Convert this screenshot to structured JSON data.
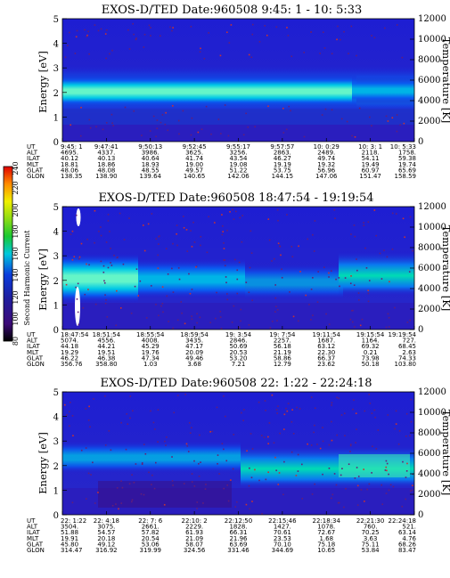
{
  "colorbar": {
    "label": "Second Harmonic Current",
    "ticks": [
      "80",
      "100",
      "120",
      "140",
      "160",
      "180",
      "200",
      "220",
      "240"
    ],
    "colors": [
      "#000000",
      "#2a0033",
      "#3c0a78",
      "#1e1ea0",
      "#0a3cdc",
      "#0a8cf0",
      "#00c8dc",
      "#00dca0",
      "#19c832",
      "#8cdc14",
      "#f0f000",
      "#ffb400",
      "#ff3c00",
      "#e00000"
    ]
  },
  "chart_data": [
    {
      "type": "heatmap",
      "title": "EXOS-D/TED  Date:960508  9:45: 1 - 10: 5:33",
      "ylabel": "Energy [eV]",
      "y2label": "Temperature [K]",
      "ylim": [
        0,
        5
      ],
      "y2lim": [
        0,
        12000
      ],
      "yticks": [
        "0",
        "1",
        "2",
        "3",
        "4",
        "5"
      ],
      "y2ticks": [
        "0",
        "2000",
        "4000",
        "6000",
        "8000",
        "10000",
        "12000"
      ],
      "table": {
        "labels": [
          "UT",
          "ALT",
          "ILAT",
          "MLT",
          "GLAT",
          "GLON"
        ],
        "columns": [
          [
            "9:45: 1",
            "4695.",
            "40.12",
            "18.81",
            "48.06",
            "138.35"
          ],
          [
            "9:47:41",
            "4337.",
            "40.13",
            "18.86",
            "48.08",
            "138.90"
          ],
          [
            "9:50:13",
            "3986.",
            "40.64",
            "18.93",
            "48.55",
            "139.64"
          ],
          [
            "9:52:45",
            "3625.",
            "41.74",
            "19.00",
            "49.57",
            "140.65"
          ],
          [
            "9:55:17",
            "3256.",
            "43.54",
            "19.08",
            "51.22",
            "142.06"
          ],
          [
            "9:57:57",
            "2863.",
            "46.27",
            "19.19",
            "53.75",
            "144.15"
          ],
          [
            "10: 0:29",
            "2489.",
            "49.74",
            "19.32",
            "56.96",
            "147.06"
          ],
          [
            "10: 3: 1",
            "2118.",
            "54.11",
            "19.49",
            "60.97",
            "151.47"
          ],
          [
            "10: 5:33",
            "1758.",
            "59.38",
            "19.74",
            "65.69",
            "158.59"
          ]
        ]
      }
    },
    {
      "type": "heatmap",
      "title": "EXOS-D/TED  Date:960508  18:47:54 - 19:19:54",
      "ylabel": "Energy [eV]",
      "y2label": "Temperature [K]",
      "ylim": [
        0,
        5
      ],
      "y2lim": [
        0,
        12000
      ],
      "yticks": [
        "0",
        "1",
        "2",
        "3",
        "4",
        "5"
      ],
      "y2ticks": [
        "0",
        "2000",
        "4000",
        "6000",
        "8000",
        "10000",
        "12000"
      ],
      "table": {
        "labels": [
          "UT",
          "ALT",
          "ILAT",
          "MLT",
          "GLAT",
          "GLON"
        ],
        "columns": [
          [
            "18:47:54",
            "5074.",
            "44.18",
            "19.29",
            "46.22",
            "356.76"
          ],
          [
            "18:51:54",
            "4556.",
            "44.21",
            "19.51",
            "46.38",
            "358.80"
          ],
          [
            "18:55:54",
            "4008.",
            "45.29",
            "19.76",
            "47.34",
            "1.03"
          ],
          [
            "18:59:54",
            "3435.",
            "47.17",
            "20.09",
            "49.46",
            "3.68"
          ],
          [
            "19: 3:54",
            "2846.",
            "50.69",
            "20.53",
            "53.20",
            "7.21"
          ],
          [
            "19: 7:54",
            "2257.",
            "56.18",
            "21.19",
            "58.86",
            "12.79"
          ],
          [
            "19:11:54",
            "1687.",
            "63.12",
            "22.30",
            "66.37",
            "23.62"
          ],
          [
            "19:15:54",
            "1164.",
            "69.32",
            "0.21",
            "73.98",
            "50.18"
          ],
          [
            "19:19:54",
            "727.",
            "68.45",
            "2.63",
            "74.33",
            "103.80"
          ]
        ]
      }
    },
    {
      "type": "heatmap",
      "title": "EXOS-D/TED  Date:960508  22: 1:22 - 22:24:18",
      "ylabel": "Energy [eV]",
      "y2label": "Temperature [K]",
      "ylim": [
        0,
        5
      ],
      "y2lim": [
        0,
        12000
      ],
      "yticks": [
        "0",
        "1",
        "2",
        "3",
        "4",
        "5"
      ],
      "y2ticks": [
        "0",
        "2000",
        "4000",
        "6000",
        "8000",
        "10000",
        "12000"
      ],
      "table": {
        "labels": [
          "UT",
          "ALT",
          "ILAT",
          "MLT",
          "GLAT",
          "GLON"
        ],
        "columns": [
          [
            "22: 1:22",
            "3504.",
            "51.88",
            "19.91",
            "45.80",
            "314.47"
          ],
          [
            "22: 4:18",
            "3075.",
            "54.57",
            "20.18",
            "49.12",
            "316.92"
          ],
          [
            "22: 7: 6",
            "2661.",
            "57.82",
            "20.54",
            "53.06",
            "319.99"
          ],
          [
            "22:10: 2",
            "2229.",
            "61.93",
            "21.09",
            "58.07",
            "324.56"
          ],
          [
            "22:12:50",
            "1828.",
            "66.31",
            "21.96",
            "63.69",
            "331.46"
          ],
          [
            "22:15:46",
            "1427.",
            "70.61",
            "23.53",
            "70.10",
            "344.69"
          ],
          [
            "22:18:34",
            "1078.",
            "72.67",
            "1.68",
            "75.18",
            "10.65"
          ],
          [
            "22:21:30",
            "760.",
            "70.25",
            "3.63",
            "75.11",
            "53.84"
          ],
          [
            "22:24:18",
            "521.",
            "63.14",
            "4.76",
            "68.26",
            "83.47"
          ]
        ]
      }
    }
  ]
}
